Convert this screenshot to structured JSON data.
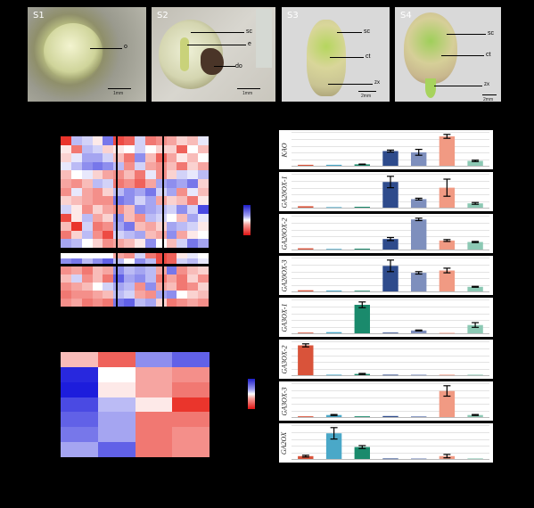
{
  "photos": [
    {
      "label": "S1",
      "annotations": [
        "o"
      ]
    },
    {
      "label": "S2",
      "annotations": [
        "sc",
        "e",
        "do"
      ]
    },
    {
      "label": "S3",
      "annotations": [
        "sc",
        "ct",
        "zx"
      ]
    },
    {
      "label": "S4",
      "annotations": [
        "sc",
        "ct",
        "zx"
      ]
    }
  ],
  "scale_text": {
    "S1": "1mm",
    "S2": "1mm",
    "S3": "2mm",
    "S4": "2mm"
  },
  "colors": {
    "blue": "#1d1dc9",
    "red": "#e01212",
    "white": "#ffffff",
    "bar_colors": [
      "#d9533a",
      "#4aa8c8",
      "#1a8a6c",
      "#2e4b8c",
      "#7e8fbd",
      "#f19a83",
      "#8cc9b4"
    ]
  },
  "chart_data": [
    {
      "type": "bar",
      "title": "KAO",
      "values": [
        0.4,
        0.4,
        0.6,
        6,
        5.5,
        12,
        2
      ],
      "errors": [
        0,
        0,
        0.1,
        0.4,
        1.2,
        0.8,
        0.3
      ]
    },
    {
      "type": "bar",
      "title": "GA20OX-1",
      "values": [
        0.5,
        0.2,
        0.3,
        9,
        3,
        7,
        1.5
      ],
      "errors": [
        0,
        0,
        0,
        2,
        0.3,
        3,
        0.3
      ]
    },
    {
      "type": "bar",
      "title": "GA20OX-2",
      "values": [
        0.4,
        0.2,
        0.3,
        3.5,
        10,
        3,
        2.5
      ],
      "errors": [
        0,
        0,
        0,
        0.5,
        0.4,
        0.3,
        0.2
      ]
    },
    {
      "type": "bar",
      "title": "GA20OX-3",
      "values": [
        0.5,
        0.4,
        0.3,
        11,
        8,
        9,
        2
      ],
      "errors": [
        0,
        0,
        0,
        2.5,
        0.5,
        1,
        0.2
      ]
    },
    {
      "type": "bar",
      "title": "GA3OX-1",
      "values": [
        0.3,
        0.5,
        12,
        0.3,
        1.2,
        0.2,
        3.5
      ],
      "errors": [
        0,
        0,
        1.2,
        0,
        0.2,
        0,
        1
      ]
    },
    {
      "type": "bar",
      "title": "GA3OX-2",
      "values": [
        12,
        0.2,
        0.5,
        0.2,
        0.2,
        0.2,
        0.2
      ],
      "errors": [
        0.6,
        0,
        0.2,
        0,
        0,
        0,
        0
      ]
    },
    {
      "type": "bar",
      "title": "GA3OX-3",
      "values": [
        0.3,
        0.8,
        0.3,
        0.4,
        0.3,
        10,
        0.8
      ],
      "errors": [
        0,
        0.2,
        0,
        0,
        0,
        2,
        0.2
      ]
    },
    {
      "type": "bar",
      "title": "GA2OX",
      "values": [
        1,
        9,
        4.2,
        0.2,
        0.2,
        1,
        0.2
      ],
      "errors": [
        0.3,
        2,
        0.5,
        0,
        0,
        0.6,
        0
      ]
    }
  ],
  "heatmap_top": [
    [
      0.9,
      -0.3,
      -0.2,
      0.1,
      -0.6,
      0.8,
      0.7,
      -0.2,
      0.6,
      0.5,
      0.4,
      0.2,
      0.3,
      -0.1
    ],
    [
      0.1,
      0.6,
      -0.3,
      -0.2,
      0.2,
      0.1,
      0.0,
      -0.2,
      0.0,
      0.2,
      0.2,
      0.7,
      0.0,
      0.3
    ],
    [
      0.2,
      -0.1,
      -0.4,
      -0.4,
      -0.2,
      0.3,
      0.6,
      -0.5,
      0.3,
      0.7,
      0.4,
      0.1,
      0.3,
      0.0
    ],
    [
      -0.1,
      -0.3,
      -0.5,
      -0.6,
      -0.5,
      -0.3,
      0.5,
      -0.2,
      0.4,
      0.5,
      0.3,
      0.6,
      0.2,
      0.4
    ],
    [
      0.3,
      0.0,
      -0.1,
      0.2,
      0.4,
      0.5,
      0.3,
      0.6,
      -0.1,
      0.5,
      0.2,
      -0.2,
      -0.1,
      -0.3
    ],
    [
      0.4,
      0.5,
      0.3,
      -0.3,
      -0.2,
      0.6,
      0.5,
      0.7,
      0.4,
      -0.4,
      -0.5,
      -0.4,
      -0.6,
      0.2
    ],
    [
      0.5,
      -0.1,
      0.4,
      0.5,
      0.2,
      -0.3,
      -0.5,
      -0.4,
      -0.6,
      -0.2,
      -0.4,
      0.5,
      -0.1,
      0.3
    ],
    [
      0.2,
      0.3,
      0.4,
      0.5,
      0.5,
      -0.6,
      -0.5,
      -0.2,
      -0.4,
      0.4,
      0.2,
      0.3,
      0.6,
      0.1
    ],
    [
      -0.2,
      0.1,
      0.5,
      0.2,
      0.4,
      0.5,
      0.3,
      -0.5,
      -0.4,
      -0.3,
      -0.2,
      -0.5,
      -0.2,
      -0.8
    ],
    [
      0.8,
      0.1,
      -0.3,
      0.4,
      0.2,
      -0.5,
      0.3,
      0.5,
      -0.3,
      -0.2,
      0.0,
      0.3,
      -0.4,
      -0.1
    ],
    [
      0.3,
      0.9,
      -0.2,
      0.6,
      0.5,
      -0.4,
      -0.6,
      0.3,
      0.4,
      0.2,
      -0.4,
      -0.3,
      -0.2,
      0.1
    ],
    [
      0.6,
      0.2,
      -0.3,
      0.5,
      0.8,
      -0.2,
      -0.3,
      -0.4,
      0.3,
      0.4,
      -0.5,
      0.4,
      0.1,
      0.0
    ],
    [
      -0.4,
      -0.3,
      0.0,
      0.2,
      0.5,
      0.4,
      0.3,
      0.1,
      -0.5,
      0.0,
      0.3,
      -0.2,
      -0.6,
      -0.4
    ]
  ],
  "heatmap_mid": [
    [
      0.0,
      0.0,
      0.0,
      0.0,
      0.0,
      0.4,
      0.5,
      -0.2,
      0.6,
      0.8,
      0.7,
      0.1,
      -0.1,
      0.0
    ],
    [
      -0.5,
      -0.6,
      -0.3,
      -0.5,
      -0.7,
      -0.3,
      0.0,
      -0.5,
      -0.3,
      0.8,
      0.7,
      -0.2,
      -0.3,
      -0.1
    ]
  ],
  "heatmap_bottom": [
    [
      0.5,
      0.4,
      0.6,
      0.3,
      0.4,
      -0.5,
      -0.3,
      -0.4,
      -0.3,
      0.4,
      -0.6,
      0.5,
      0.3,
      0.2
    ],
    [
      0.3,
      -0.2,
      0.5,
      0.3,
      0.6,
      -0.7,
      -0.4,
      -0.5,
      -0.3,
      0.6,
      0.4,
      0.6,
      0.2,
      0.5
    ],
    [
      0.5,
      0.4,
      0.3,
      0.0,
      -0.2,
      -0.4,
      -0.3,
      0.5,
      -0.5,
      0.4,
      0.3,
      0.6,
      0.5,
      0.2
    ],
    [
      0.6,
      0.5,
      0.5,
      0.4,
      0.3,
      -0.3,
      -0.2,
      0.4,
      0.5,
      -0.4,
      -0.5,
      0.0,
      0.2,
      0.3
    ],
    [
      0.5,
      0.4,
      0.6,
      0.5,
      0.6,
      -0.6,
      -0.7,
      -0.3,
      -0.4,
      0.2,
      0.6,
      0.5,
      0.4,
      0.5
    ]
  ],
  "heatmap_small": [
    [
      0.3,
      0.7,
      -0.5,
      -0.7
    ],
    [
      -0.95,
      0.0,
      0.4,
      0.5
    ],
    [
      -1.0,
      0.1,
      0.4,
      0.6
    ],
    [
      -0.8,
      -0.3,
      0.1,
      0.9
    ],
    [
      -0.7,
      -0.4,
      0.6,
      0.6
    ],
    [
      -0.6,
      -0.4,
      0.6,
      0.5
    ],
    [
      -0.4,
      -0.7,
      0.6,
      0.5
    ]
  ]
}
